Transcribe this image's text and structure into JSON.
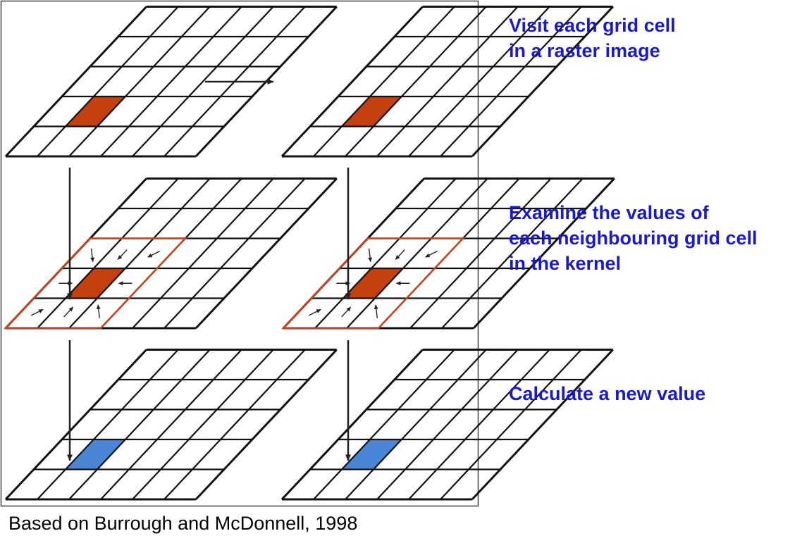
{
  "steps": {
    "visit": {
      "line1": "Visit each grid cell",
      "line2": "in a raster image"
    },
    "examine": {
      "line1": "Examine the values of",
      "line2": "each neighbouring grid cell",
      "line3": "in the kernel"
    },
    "calculate": {
      "line1": "Calculate a new value"
    }
  },
  "credit": "Based on Burrough and McDonnell, 1998",
  "colors": {
    "step_text": "#1a1acc",
    "focus_cell": "#c4400f",
    "kernel_outline": "#c8441c",
    "result_cell": "#4a86d6",
    "grid_line": "#111111",
    "arrow": "#222222"
  },
  "grid": {
    "rows": 5,
    "cols": 6,
    "focus_row": 3,
    "focus_col": 1
  }
}
